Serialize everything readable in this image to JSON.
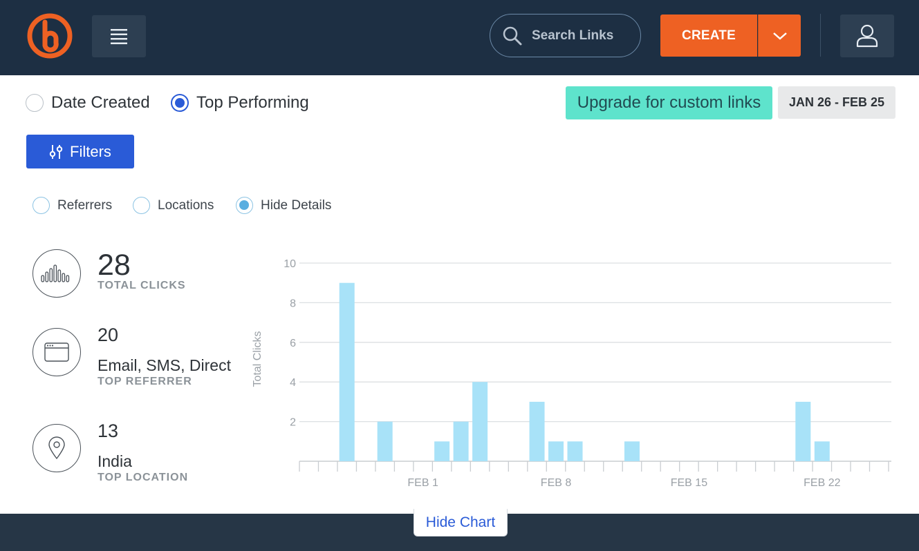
{
  "header": {
    "logo_icon": "bitly-logo",
    "menu_icon": "hamburger-icon",
    "search_placeholder": "Search Links",
    "create_label": "CREATE",
    "user_icon": "user-icon"
  },
  "sort": {
    "options": [
      {
        "label": "Date Created",
        "selected": false
      },
      {
        "label": "Top Performing",
        "selected": true
      }
    ]
  },
  "upgrade_label": "Upgrade for custom links",
  "date_range": "JAN 26 - FEB 25",
  "filters_label": "Filters",
  "details": {
    "options": [
      {
        "label": "Referrers",
        "selected": false
      },
      {
        "label": "Locations",
        "selected": false
      },
      {
        "label": "Hide Details",
        "selected": true
      }
    ]
  },
  "stats": {
    "total_clicks": {
      "value": "28",
      "label": "TOTAL CLICKS"
    },
    "top_referrer": {
      "value": "20",
      "name": "Email, SMS, Direct",
      "label": "TOP REFERRER"
    },
    "top_location": {
      "value": "13",
      "name": "India",
      "label": "TOP LOCATION"
    }
  },
  "chart_data": {
    "type": "bar",
    "ylabel": "Total Clicks",
    "ylim": [
      0,
      10
    ],
    "yticks": [
      2,
      4,
      6,
      8,
      10
    ],
    "x_tick_labels": [
      "FEB 1",
      "FEB 8",
      "FEB 15",
      "FEB 22"
    ],
    "categories": [
      "Jan 26",
      "Jan 27",
      "Jan 28",
      "Jan 29",
      "Jan 30",
      "Jan 31",
      "Feb 1",
      "Feb 2",
      "Feb 3",
      "Feb 4",
      "Feb 5",
      "Feb 6",
      "Feb 7",
      "Feb 8",
      "Feb 9",
      "Feb 10",
      "Feb 11",
      "Feb 12",
      "Feb 13",
      "Feb 14",
      "Feb 15",
      "Feb 16",
      "Feb 17",
      "Feb 18",
      "Feb 19",
      "Feb 20",
      "Feb 21",
      "Feb 22",
      "Feb 23",
      "Feb 24",
      "Feb 25"
    ],
    "values": [
      0,
      0,
      9,
      0,
      2,
      0,
      0,
      1,
      2,
      4,
      0,
      0,
      3,
      1,
      1,
      0,
      0,
      1,
      0,
      0,
      0,
      0,
      0,
      0,
      0,
      0,
      3,
      1,
      0,
      0,
      0
    ],
    "bar_color": "#a8e2f8",
    "grid": true
  },
  "hide_chart_label": "Hide Chart",
  "colors": {
    "header_bg": "#1d2f43",
    "accent_orange": "#ee6123",
    "primary_blue": "#2a5bd7",
    "upgrade_teal": "#5ee3cc"
  }
}
